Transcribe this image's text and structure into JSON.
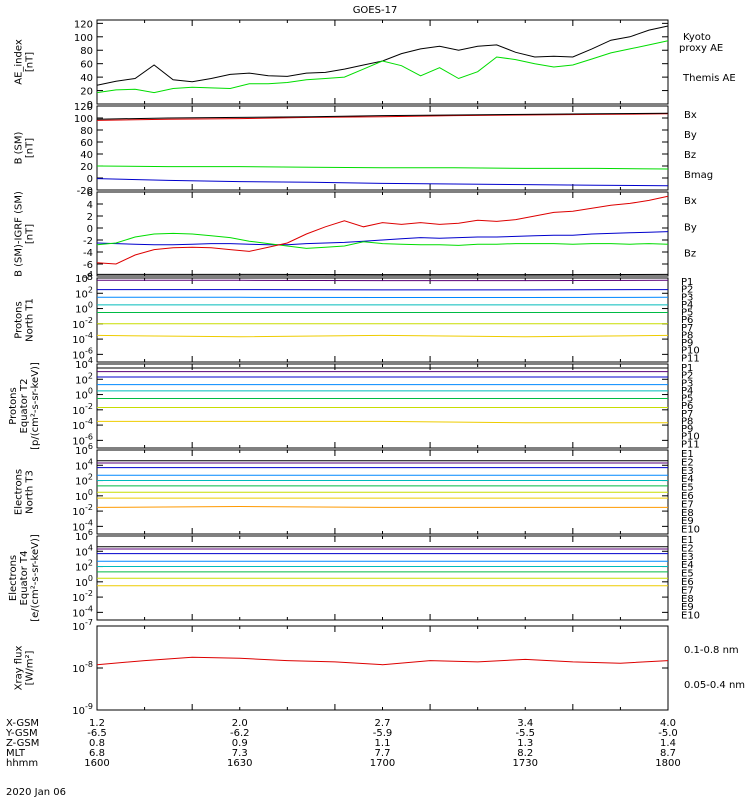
{
  "title": "GOES-17",
  "date_label": "2020 Jan 06",
  "colors": {
    "black": "#000000",
    "green": "#00dd00",
    "red": "#dd0000",
    "blue": "#0000cc",
    "p": [
      "#000000",
      "#5a0078",
      "#0000cc",
      "#0088ff",
      "#00bbbb",
      "#00bb44",
      "#c8dd00",
      "#eecc00",
      "#ff9900",
      "#ff3300",
      "#cc0000"
    ],
    "e": [
      "#000000",
      "#5a0078",
      "#0000cc",
      "#0088ff",
      "#00bbbb",
      "#00bb44",
      "#c8dd00",
      "#eecc00",
      "#ff9900",
      "#ff3300"
    ]
  },
  "panels": [
    {
      "id": "ae",
      "ylabel": [
        "AE_index",
        "[nT]"
      ],
      "yticks": [
        "120",
        "100",
        "80",
        "60",
        "40",
        "20",
        "0"
      ],
      "legend": [
        {
          "text": "Kyoto",
          "color": "green"
        },
        {
          "text": "proxy AE",
          "color": "green"
        },
        {
          "text": "Themis AE",
          "color": "black"
        }
      ]
    },
    {
      "id": "bsm",
      "ylabel": [
        "B (SM)",
        "[nT]"
      ],
      "yticks": [
        "120",
        "100",
        "80",
        "60",
        "40",
        "20",
        "0",
        "-20"
      ],
      "legend": [
        {
          "text": "Bx",
          "color": "blue"
        },
        {
          "text": "By",
          "color": "green"
        },
        {
          "text": "Bz",
          "color": "red"
        },
        {
          "text": "Bmag",
          "color": "black"
        }
      ]
    },
    {
      "id": "bigrf",
      "ylabel": [
        "B (SM)-IGRF (SM)",
        "[nT]"
      ],
      "yticks": [
        "6",
        "4",
        "2",
        "0",
        "-2",
        "-4",
        "-6",
        "-8"
      ],
      "legend": [
        {
          "text": "Bx",
          "color": "blue"
        },
        {
          "text": "By",
          "color": "green"
        },
        {
          "text": "Bz",
          "color": "red"
        }
      ]
    },
    {
      "id": "pnt1",
      "ylabel": [
        "Protons",
        "North T1"
      ],
      "yticks": [
        [
          "10",
          "4"
        ],
        [
          "10",
          "2"
        ],
        [
          "10",
          "0"
        ],
        [
          "10",
          "-2"
        ],
        [
          "10",
          "-4"
        ],
        [
          "10",
          "-6"
        ]
      ],
      "legend": [
        "P1",
        "P2",
        "P3",
        "P4",
        "P5",
        "P6",
        "P7",
        "P8",
        "P9",
        "P10",
        "P11"
      ]
    },
    {
      "id": "pet2",
      "ylabel": [
        "Protons",
        "Equator T2",
        "[p/(cm²-s-sr-keV)]"
      ],
      "yticks": [
        [
          "10",
          "4"
        ],
        [
          "10",
          "2"
        ],
        [
          "10",
          "0"
        ],
        [
          "10",
          "-2"
        ],
        [
          "10",
          "-4"
        ],
        [
          "10",
          "-6"
        ]
      ],
      "legend": [
        "P1",
        "P2",
        "P3",
        "P4",
        "P5",
        "P6",
        "P7",
        "P8",
        "P9",
        "P10",
        "P11"
      ]
    },
    {
      "id": "ent3",
      "ylabel": [
        "Electrons",
        "North T3"
      ],
      "yticks": [
        [
          "10",
          "6"
        ],
        [
          "10",
          "4"
        ],
        [
          "10",
          "2"
        ],
        [
          "10",
          "0"
        ],
        [
          "10",
          "-2"
        ],
        [
          "10",
          "-4"
        ]
      ],
      "legend": [
        "E1",
        "E2",
        "E3",
        "E4",
        "E5",
        "E6",
        "E7",
        "E8",
        "E9",
        "E10"
      ]
    },
    {
      "id": "eet4",
      "ylabel": [
        "Electrons",
        "Equator T4",
        "[e/(cm²-s-sr-keV)]"
      ],
      "yticks": [
        [
          "10",
          "6"
        ],
        [
          "10",
          "4"
        ],
        [
          "10",
          "2"
        ],
        [
          "10",
          "0"
        ],
        [
          "10",
          "-2"
        ],
        [
          "10",
          "-4"
        ]
      ],
      "legend": [
        "E1",
        "E2",
        "E3",
        "E4",
        "E5",
        "E6",
        "E7",
        "E8",
        "E9",
        "E10"
      ]
    },
    {
      "id": "xray",
      "ylabel": [
        "Xray flux",
        "[W/m²]"
      ],
      "yticks": [
        [
          "10",
          "-7"
        ],
        [
          "10",
          "-8"
        ],
        [
          "10",
          "-9"
        ]
      ],
      "legend": [
        {
          "text": "0.1-0.8 nm",
          "color": "red"
        },
        {
          "text": "0.05-0.4 nm",
          "color": "blue"
        }
      ]
    }
  ],
  "xaxis": {
    "row_labels": [
      "X-GSM",
      "Y-GSM",
      "Z-GSM",
      "MLT",
      "hhmm"
    ],
    "columns": [
      [
        "1.2",
        "-6.5",
        "0.8",
        "6.8",
        "1600"
      ],
      [
        "2.0",
        "-6.2",
        "0.9",
        "7.3",
        "1630"
      ],
      [
        "2.7",
        "-5.9",
        "1.1",
        "7.7",
        "1700"
      ],
      [
        "3.4",
        "-5.5",
        "1.3",
        "8.2",
        "1730"
      ],
      [
        "4.0",
        "-5.0",
        "1.4",
        "8.7",
        "1800"
      ]
    ]
  },
  "chart_data": [
    {
      "type": "line",
      "title": "GOES-17",
      "ylabel": "AE_index [nT]",
      "ylim": [
        0,
        125
      ],
      "x": [
        1600,
        1604,
        1608,
        1612,
        1616,
        1620,
        1624,
        1628,
        1632,
        1636,
        1640,
        1644,
        1648,
        1652,
        1656,
        1700,
        1704,
        1708,
        1712,
        1716,
        1720,
        1724,
        1728,
        1732,
        1736,
        1740,
        1744,
        1748,
        1752,
        1756,
        1800
      ],
      "series": [
        {
          "name": "Themis AE",
          "color": "black",
          "values": [
            28,
            34,
            38,
            58,
            36,
            33,
            38,
            44,
            46,
            42,
            41,
            46,
            47,
            52,
            58,
            64,
            75,
            82,
            86,
            80,
            86,
            88,
            77,
            70,
            71,
            70,
            82,
            95,
            100,
            110,
            116
          ]
        },
        {
          "name": "Kyoto proxy AE",
          "color": "green",
          "values": [
            17,
            21,
            22,
            17,
            23,
            25,
            24,
            23,
            30,
            30,
            32,
            36,
            38,
            40,
            52,
            64,
            57,
            42,
            54,
            38,
            48,
            70,
            66,
            60,
            55,
            58,
            67,
            76,
            82,
            88,
            94
          ]
        }
      ]
    },
    {
      "type": "line",
      "ylabel": "B (SM) [nT]",
      "ylim": [
        -20,
        120
      ],
      "x": [
        1600,
        1615,
        1630,
        1645,
        1700,
        1715,
        1730,
        1745,
        1800
      ],
      "series": [
        {
          "name": "Bx",
          "color": "blue",
          "values": [
            -1,
            -4,
            -6,
            -7,
            -9,
            -10,
            -11,
            -12,
            -13
          ]
        },
        {
          "name": "By",
          "color": "green",
          "values": [
            20,
            19,
            19,
            18,
            17,
            17,
            16,
            16,
            15
          ]
        },
        {
          "name": "Bz",
          "color": "red",
          "values": [
            96,
            98,
            99,
            101,
            102,
            104,
            105,
            106,
            107
          ]
        },
        {
          "name": "Bmag",
          "color": "black",
          "values": [
            98,
            100,
            101,
            102,
            104,
            105,
            106,
            107,
            108
          ]
        }
      ]
    },
    {
      "type": "line",
      "ylabel": "B (SM)-IGRF (SM) [nT]",
      "ylim": [
        -8,
        6
      ],
      "x": [
        1600,
        1604,
        1608,
        1612,
        1616,
        1620,
        1624,
        1628,
        1632,
        1636,
        1640,
        1644,
        1648,
        1652,
        1656,
        1700,
        1704,
        1708,
        1712,
        1716,
        1720,
        1724,
        1728,
        1732,
        1736,
        1740,
        1744,
        1748,
        1752,
        1756,
        1800
      ],
      "series": [
        {
          "name": "Bx",
          "color": "blue",
          "values": [
            -2.5,
            -2.6,
            -2.7,
            -2.8,
            -2.8,
            -2.7,
            -2.6,
            -2.6,
            -2.7,
            -2.8,
            -2.8,
            -2.6,
            -2.5,
            -2.4,
            -2.2,
            -2.0,
            -1.8,
            -1.6,
            -1.7,
            -1.6,
            -1.5,
            -1.5,
            -1.4,
            -1.3,
            -1.2,
            -1.2,
            -1.0,
            -0.9,
            -0.8,
            -0.7,
            -0.6
          ]
        },
        {
          "name": "By",
          "color": "green",
          "values": [
            -2.8,
            -2.5,
            -1.5,
            -1.0,
            -0.9,
            -1.0,
            -1.3,
            -1.6,
            -2.2,
            -2.6,
            -3.0,
            -3.4,
            -3.2,
            -3.0,
            -2.3,
            -2.6,
            -2.7,
            -2.8,
            -2.8,
            -2.9,
            -2.7,
            -2.7,
            -2.6,
            -2.6,
            -2.6,
            -2.7,
            -2.6,
            -2.6,
            -2.7,
            -2.6,
            -2.7
          ]
        },
        {
          "name": "Bz",
          "color": "red",
          "values": [
            -5.8,
            -6.0,
            -4.5,
            -3.6,
            -3.3,
            -3.2,
            -3.3,
            -3.6,
            -3.9,
            -3.2,
            -2.5,
            -1.0,
            0.2,
            1.2,
            0.2,
            0.9,
            0.6,
            0.9,
            0.6,
            0.8,
            1.3,
            1.1,
            1.4,
            2.0,
            2.6,
            2.8,
            3.3,
            3.8,
            4.1,
            4.6,
            5.3
          ]
        }
      ]
    },
    {
      "type": "line",
      "ylabel": "Protons North T1",
      "yscale": "log",
      "ylim": [
        1e-07,
        10000.0
      ],
      "x": [
        1600,
        1630,
        1700,
        1730,
        1800
      ],
      "series": [
        {
          "name": "P1",
          "values": [
            30000,
            30000,
            28000,
            28000,
            30000
          ]
        },
        {
          "name": "P2",
          "values": [
            5000,
            5000,
            4500,
            4500,
            5000
          ]
        },
        {
          "name": "P3",
          "values": [
            300,
            300,
            280,
            280,
            300
          ]
        },
        {
          "name": "P4",
          "values": [
            30,
            30,
            28,
            28,
            30
          ]
        },
        {
          "name": "P5",
          "values": [
            3,
            3,
            3,
            3,
            3
          ]
        },
        {
          "name": "P6",
          "values": [
            0.3,
            0.3,
            0.3,
            0.3,
            0.3
          ]
        },
        {
          "name": "P7",
          "values": [
            0.01,
            0.01,
            0.01,
            0.01,
            0.01
          ]
        },
        {
          "name": "P8",
          "values": [
            0.0003,
            0.0002,
            0.0003,
            0.0002,
            0.0003
          ]
        }
      ]
    },
    {
      "type": "line",
      "ylabel": "Protons Equator T2 [p/(cm²-s-sr-keV)]",
      "yscale": "log",
      "ylim": [
        1e-07,
        10000.0
      ],
      "x": [
        1600,
        1630,
        1700,
        1730,
        1800
      ],
      "series": [
        {
          "name": "P1",
          "values": [
            3000,
            3000,
            3000,
            3000,
            3000
          ]
        },
        {
          "name": "P2",
          "values": [
            1000,
            1000,
            1000,
            1000,
            1000
          ]
        },
        {
          "name": "P3",
          "values": [
            200,
            200,
            200,
            200,
            200
          ]
        },
        {
          "name": "P4",
          "values": [
            20,
            20,
            20,
            20,
            20
          ]
        },
        {
          "name": "P5",
          "values": [
            3,
            3,
            3,
            3,
            3
          ]
        },
        {
          "name": "P6",
          "values": [
            0.3,
            0.3,
            0.3,
            0.3,
            0.3
          ]
        },
        {
          "name": "P7",
          "values": [
            0.02,
            0.02,
            0.02,
            0.02,
            0.02
          ]
        },
        {
          "name": "P8",
          "values": [
            0.0003,
            0.0003,
            0.0003,
            0.0002,
            0.0002
          ]
        }
      ]
    },
    {
      "type": "line",
      "ylabel": "Electrons North T3",
      "yscale": "log",
      "ylim": [
        1e-05,
        1000000.0
      ],
      "x": [
        1600,
        1630,
        1700,
        1730,
        1800
      ],
      "series": [
        {
          "name": "E1",
          "values": [
            40000,
            40000,
            40000,
            40000,
            40000
          ]
        },
        {
          "name": "E2",
          "values": [
            20000,
            20000,
            20000,
            20000,
            20000
          ]
        },
        {
          "name": "E3",
          "values": [
            5000,
            5000,
            5000,
            5000,
            5000
          ]
        },
        {
          "name": "E4",
          "values": [
            500,
            500,
            500,
            500,
            500
          ]
        },
        {
          "name": "E5",
          "values": [
            100,
            100,
            100,
            100,
            100
          ]
        },
        {
          "name": "E6",
          "values": [
            20,
            20,
            20,
            20,
            20
          ]
        },
        {
          "name": "E7",
          "values": [
            3,
            3,
            3,
            3,
            3
          ]
        },
        {
          "name": "E8",
          "values": [
            0.5,
            0.5,
            0.5,
            0.5,
            0.5
          ]
        },
        {
          "name": "E9",
          "values": [
            0.03,
            0.04,
            0.03,
            0.03,
            0.03
          ]
        }
      ]
    },
    {
      "type": "line",
      "ylabel": "Electrons Equator T4 [e/(cm²-s-sr-keV)]",
      "yscale": "log",
      "ylim": [
        1e-05,
        1000000.0
      ],
      "x": [
        1600,
        1630,
        1700,
        1730,
        1800
      ],
      "series": [
        {
          "name": "E1",
          "values": [
            40000,
            40000,
            40000,
            40000,
            40000
          ]
        },
        {
          "name": "E2",
          "values": [
            20000,
            20000,
            20000,
            20000,
            20000
          ]
        },
        {
          "name": "E3",
          "values": [
            5000,
            5000,
            5000,
            5000,
            5000
          ]
        },
        {
          "name": "E4",
          "values": [
            500,
            500,
            500,
            500,
            500
          ]
        },
        {
          "name": "E5",
          "values": [
            100,
            100,
            100,
            100,
            100
          ]
        },
        {
          "name": "E6",
          "values": [
            20,
            20,
            20,
            20,
            20
          ]
        },
        {
          "name": "E7",
          "values": [
            3,
            3,
            3,
            3,
            3
          ]
        },
        {
          "name": "E8",
          "values": [
            0.3,
            0.3,
            0.3,
            0.3,
            0.3
          ]
        }
      ]
    },
    {
      "type": "line",
      "ylabel": "Xray flux [W/m²]",
      "yscale": "log",
      "ylim": [
        1e-09,
        1e-07
      ],
      "x": [
        1600,
        1610,
        1620,
        1630,
        1640,
        1650,
        1700,
        1710,
        1720,
        1730,
        1740,
        1750,
        1800
      ],
      "series": [
        {
          "name": "0.1-0.8 nm",
          "color": "red",
          "values": [
            1.2e-08,
            1.5e-08,
            1.8e-08,
            1.7e-08,
            1.5e-08,
            1.4e-08,
            1.2e-08,
            1.5e-08,
            1.4e-08,
            1.6e-08,
            1.4e-08,
            1.3e-08,
            1.5e-08
          ]
        }
      ]
    }
  ]
}
